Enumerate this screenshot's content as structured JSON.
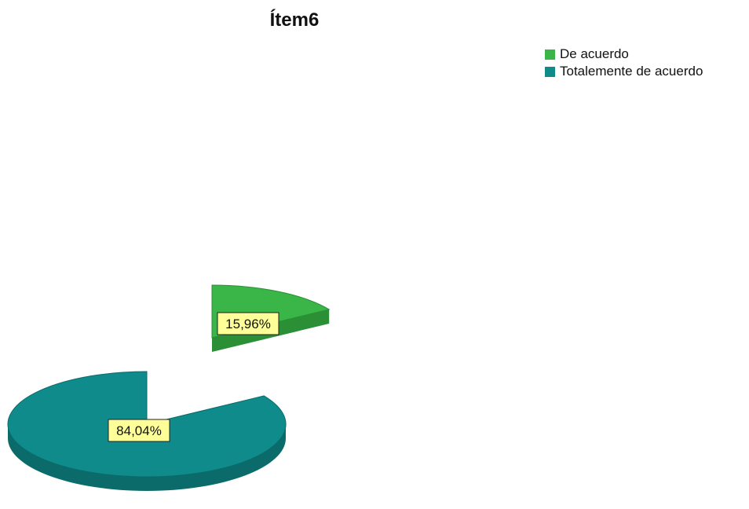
{
  "chart_data": {
    "type": "pie",
    "title": "Ítem6",
    "legend_position": "top-right",
    "three_d": true,
    "exploded": true,
    "slices": [
      {
        "name": "De acuerdo",
        "value": 15.96,
        "label": "15,96%",
        "color": "#3ab548",
        "dark": "#2a8f35"
      },
      {
        "name": "Totalemente de acuerdo",
        "value": 84.04,
        "label": "84,04%",
        "color": "#108b8b",
        "dark": "#0b6b6b"
      }
    ]
  }
}
